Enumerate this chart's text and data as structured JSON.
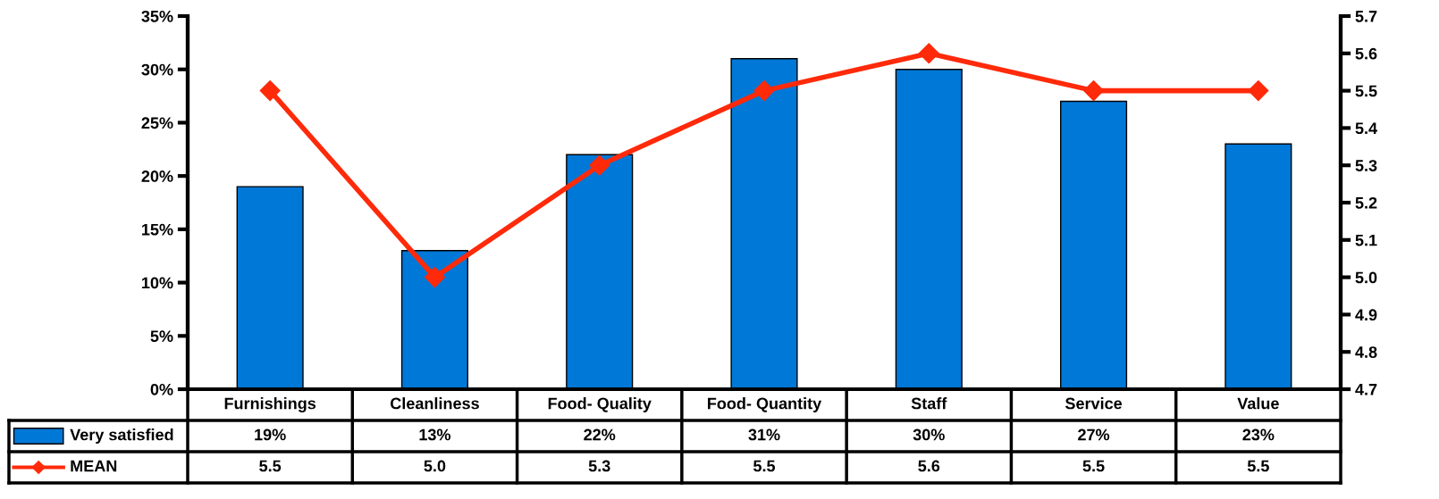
{
  "chart_data": {
    "type": "bar",
    "categories": [
      "Furnishings",
      "Cleanliness",
      "Food- Quality",
      "Food- Quantity",
      "Staff",
      "Service",
      "Value"
    ],
    "series": [
      {
        "name": "Very satisfied",
        "color": "#0078d7",
        "values": [
          19,
          13,
          22,
          31,
          30,
          27,
          23
        ],
        "value_labels": [
          "19%",
          "13%",
          "22%",
          "31%",
          "30%",
          "27%",
          "23%"
        ]
      },
      {
        "name": "MEAN",
        "type": "line",
        "axis": "y2",
        "color": "#ff2a0a",
        "marker": "diamond",
        "line_style": "solid",
        "values": [
          5.5,
          5.0,
          5.3,
          5.5,
          5.6,
          5.5,
          5.5
        ],
        "value_labels": [
          "5.5",
          "5.0",
          "5.3",
          "5.5",
          "5.6",
          "5.5",
          "5.5"
        ]
      }
    ],
    "ylim": [
      0,
      35
    ],
    "yticks": [
      {
        "value": 0,
        "label": "0%"
      },
      {
        "value": 5,
        "label": "5%"
      },
      {
        "value": 10,
        "label": "10%"
      },
      {
        "value": 15,
        "label": "15%"
      },
      {
        "value": 20,
        "label": "20%"
      },
      {
        "value": 25,
        "label": "25%"
      },
      {
        "value": 30,
        "label": "30%"
      },
      {
        "value": 35,
        "label": "35%"
      }
    ],
    "y2lim": [
      4.7,
      5.7
    ],
    "y2ticks": [
      4.7,
      4.8,
      4.9,
      {
        "value": 5,
        "label": "5.0"
      },
      5.1,
      5.2,
      5.3,
      5.4,
      5.5,
      5.6,
      5.7
    ],
    "grid": false,
    "legend": "bottom"
  }
}
